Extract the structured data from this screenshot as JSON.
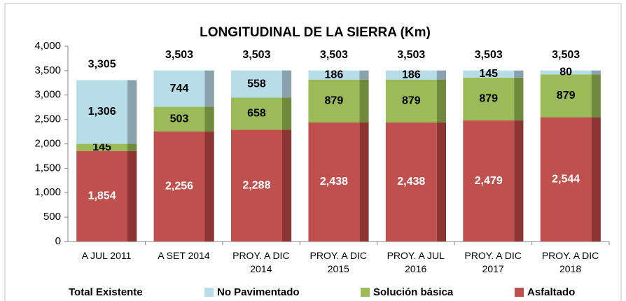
{
  "chart_data": {
    "type": "stacked_bar",
    "title": "LONGITUDINAL DE LA SIERRA (Km)",
    "categories": [
      "A JUL 2011",
      "A SET 2014",
      "PROY. A DIC 2014",
      "PROY. A DIC 2015",
      "PROY. A JUL 2016",
      "PROY. A DIC 2017",
      "PROY. A DIC 2018"
    ],
    "series": [
      {
        "name": "Asfaltado",
        "color": "#c0504d",
        "side_color": "#8c3533",
        "label_color": "#ffffff",
        "values": [
          1854,
          2256,
          2288,
          2438,
          2438,
          2479,
          2544
        ],
        "value_labels": [
          "1,854",
          "2,256",
          "2,288",
          "2,438",
          "2,438",
          "2,479",
          "2,544"
        ]
      },
      {
        "name": "Solución básica",
        "color": "#9bbb59",
        "side_color": "#6f8a3c",
        "label_color": "#000000",
        "values": [
          145,
          503,
          658,
          879,
          879,
          879,
          879
        ]
      },
      {
        "name": "No Pavimentado",
        "color": "#b7dde8",
        "side_color": "#8aa2ad",
        "label_color": "#000000",
        "values": [
          1306,
          744,
          558,
          186,
          186,
          145,
          80
        ],
        "value_labels": [
          "1,306",
          "744",
          "558",
          "186",
          "186",
          "145",
          "80"
        ]
      }
    ],
    "totals": {
      "name": "Total Existente",
      "values": [
        3305,
        3503,
        3503,
        3503,
        3503,
        3503,
        3503
      ],
      "value_labels": [
        "3,305",
        "3,503",
        "3,503",
        "3,503",
        "3,503",
        "3,503",
        "3,503"
      ]
    },
    "ylim": [
      0,
      4000
    ],
    "yticks": [
      0,
      500,
      {
        "value": 1000,
        "label": "1,000"
      },
      {
        "value": 1500,
        "label": "1,500"
      },
      {
        "value": 2000,
        "label": "2,000"
      },
      {
        "value": 2500,
        "label": "2,500"
      },
      {
        "value": 3000,
        "label": "3,000"
      },
      {
        "value": 3500,
        "label": "3,500"
      },
      {
        "value": 4000,
        "label": "4,000"
      }
    ]
  }
}
